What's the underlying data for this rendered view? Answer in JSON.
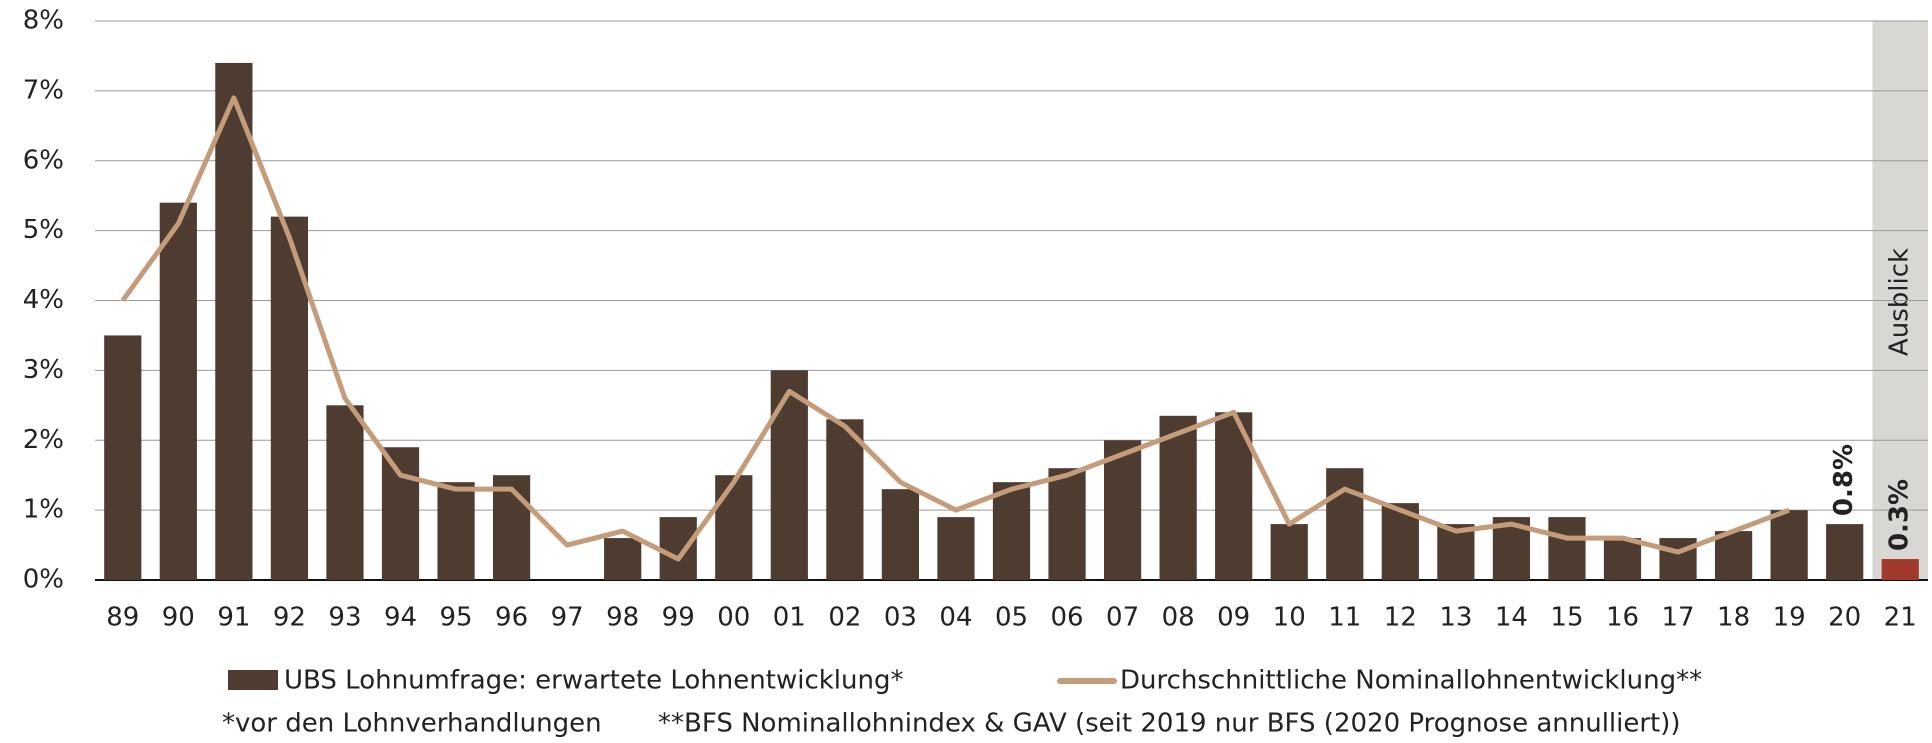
{
  "chart_data": {
    "type": "bar",
    "categories": [
      "89",
      "90",
      "91",
      "92",
      "93",
      "94",
      "95",
      "96",
      "97",
      "98",
      "99",
      "00",
      "01",
      "02",
      "03",
      "04",
      "05",
      "06",
      "07",
      "08",
      "09",
      "10",
      "11",
      "12",
      "13",
      "14",
      "15",
      "16",
      "17",
      "18",
      "19",
      "20",
      "21"
    ],
    "series": [
      {
        "name": "UBS Lohnumfrage: erwartete Lohnentwicklung*",
        "type": "bar",
        "color": "#4e3c31",
        "values": [
          3.5,
          5.4,
          7.4,
          5.2,
          2.5,
          1.9,
          1.4,
          1.5,
          null,
          0.6,
          0.9,
          1.5,
          3.0,
          2.3,
          1.3,
          0.9,
          1.4,
          1.6,
          2.0,
          2.35,
          2.4,
          0.8,
          1.6,
          1.1,
          0.8,
          0.9,
          0.9,
          0.6,
          0.6,
          0.7,
          1.0,
          0.8,
          0.3
        ],
        "value_labels": [
          null,
          null,
          null,
          null,
          null,
          null,
          null,
          null,
          null,
          null,
          null,
          null,
          null,
          null,
          null,
          null,
          null,
          null,
          null,
          null,
          null,
          null,
          null,
          null,
          null,
          null,
          null,
          null,
          null,
          null,
          null,
          "0.8%",
          "0.3%"
        ]
      },
      {
        "name": "Durchschnittliche Nominallohnentwicklung**",
        "type": "line",
        "color": "#c49c7a",
        "values": [
          4.0,
          5.1,
          6.9,
          4.9,
          2.6,
          1.5,
          1.3,
          1.3,
          0.5,
          0.7,
          0.3,
          1.4,
          2.7,
          2.2,
          1.4,
          1.0,
          1.3,
          1.5,
          1.8,
          2.1,
          2.4,
          0.8,
          1.3,
          1.0,
          0.7,
          0.8,
          0.6,
          0.6,
          0.4,
          0.7,
          1.0,
          null,
          null
        ]
      }
    ],
    "forecast": {
      "label": "Ausblick",
      "from_index": 32,
      "shade_color": "#d9d7d4",
      "bar_color": "#a23a2c"
    },
    "ylim": [
      0,
      8
    ],
    "yticks": [
      {
        "value": 0,
        "label": "0%"
      },
      {
        "value": 1,
        "label": "1%"
      },
      {
        "value": 2,
        "label": "2%"
      },
      {
        "value": 3,
        "label": "3%"
      },
      {
        "value": 4,
        "label": "4%"
      },
      {
        "value": 5,
        "label": "5%"
      },
      {
        "value": 6,
        "label": "6%"
      },
      {
        "value": 7,
        "label": "7%"
      },
      {
        "value": 8,
        "label": "8%"
      }
    ],
    "grid": true,
    "footnotes": [
      "*vor den Lohnverhandlungen",
      "**BFS Nominallohnindex & GAV (seit 2019 nur BFS (2020 Prognose annulliert))"
    ]
  }
}
